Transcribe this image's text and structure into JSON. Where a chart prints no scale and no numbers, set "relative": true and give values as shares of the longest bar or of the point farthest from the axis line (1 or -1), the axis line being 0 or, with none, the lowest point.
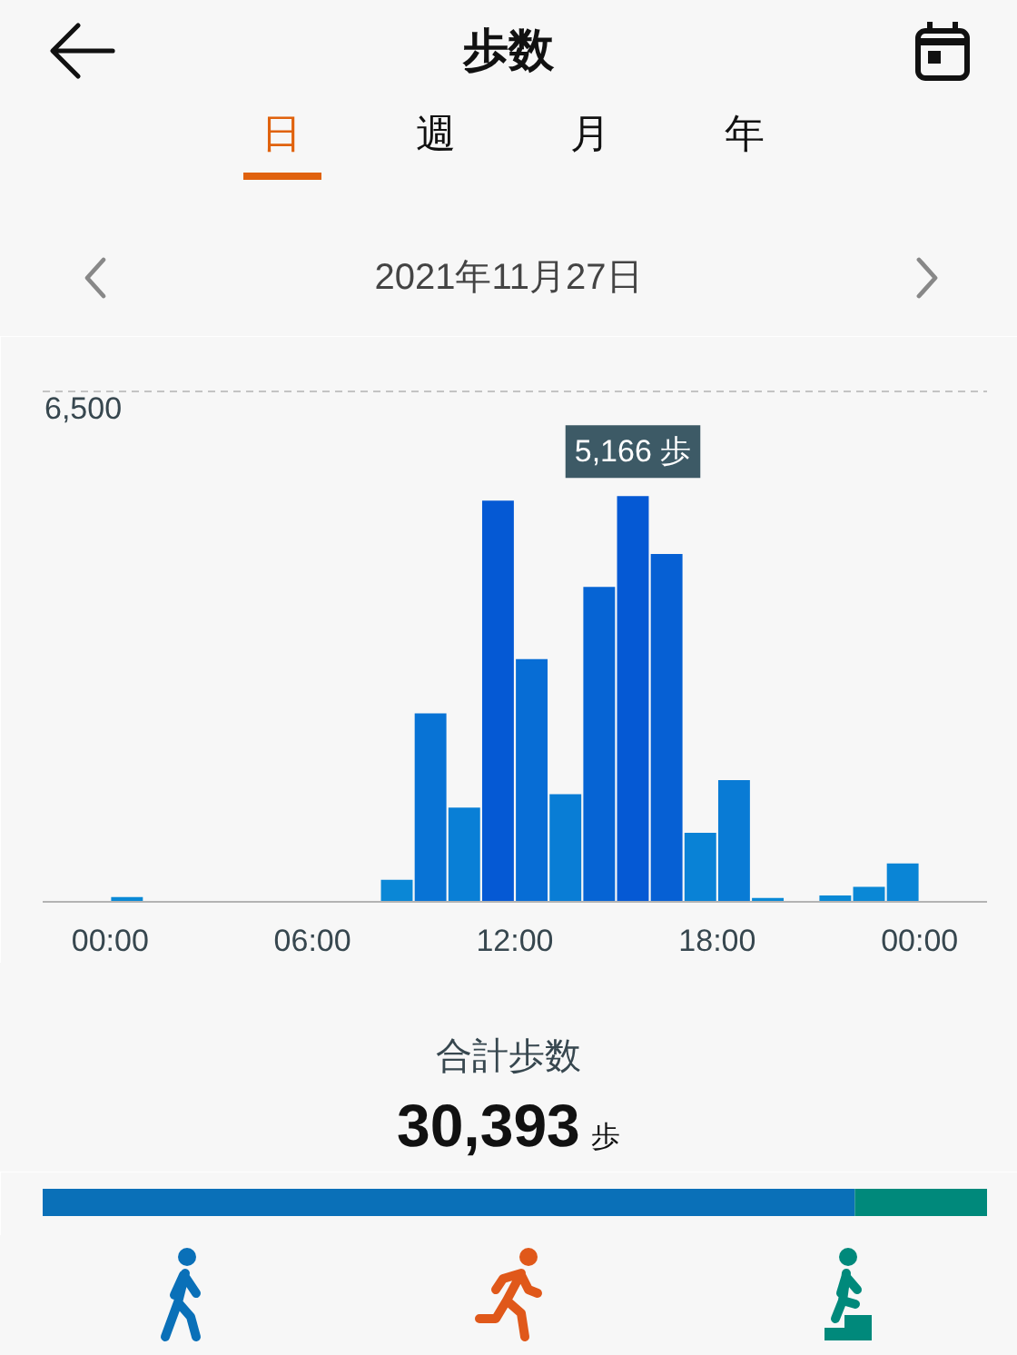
{
  "chart_data": [
    {
      "type": "other",
      "title": "歩数",
      "annotations": [
        "日",
        "週",
        "月",
        "年"
      ]
    },
    {
      "type": "bar",
      "title": "2021年11月27日",
      "x": [
        0.5,
        8.5,
        9.5,
        10.5,
        11.5,
        12.5,
        13.5,
        14.5,
        15.5,
        16.5,
        17.5,
        18.5,
        19.5,
        21.5,
        22.5,
        23.5
      ],
      "values": [
        60,
        280,
        2400,
        1200,
        5110,
        3090,
        1370,
        4010,
        5166,
        4430,
        880,
        1550,
        50,
        80,
        190,
        490
      ],
      "colors": [
        "#0a89d6",
        "#0a87d6",
        "#0873d5",
        "#097fd6",
        "#0559d4",
        "#076dd5",
        "#097dd5",
        "#0664d4",
        "#0559d4",
        "#0660d4",
        "#0982d6",
        "#097bd5",
        "#0a89d6",
        "#0a89d6",
        "#0a88d6",
        "#0a85d6"
      ],
      "value_labels": [
        null,
        null,
        null,
        null,
        null,
        null,
        null,
        null,
        "5,166 歩",
        null,
        null,
        null,
        null,
        null,
        null,
        null
      ],
      "xlim": [
        -2,
        26
      ],
      "xticks": [
        {
          "value": 0,
          "label": "00:00"
        },
        {
          "value": 6,
          "label": "06:00"
        },
        {
          "value": 12,
          "label": "12:00"
        },
        {
          "value": 18,
          "label": "18:00"
        },
        {
          "value": 24,
          "label": "00:00"
        }
      ],
      "ylim": [
        0,
        6500
      ],
      "tick_labels": "x",
      "ref_lines": [
        {
          "axis": "y",
          "value": 6500,
          "label": "6,500",
          "line_style": "dashed",
          "color": "#c4c4c4"
        }
      ]
    },
    {
      "type": "bar",
      "title": "合計歩数",
      "subtitle": "30,393 歩",
      "orientation": "horizontal",
      "stacked": true,
      "relative": true,
      "categories": [
        null
      ],
      "series": [
        {
          "color": "#0a70b8",
          "values": [
            0.86
          ]
        },
        {
          "color": "#00897b",
          "values": [
            0.14
          ]
        }
      ]
    }
  ]
}
